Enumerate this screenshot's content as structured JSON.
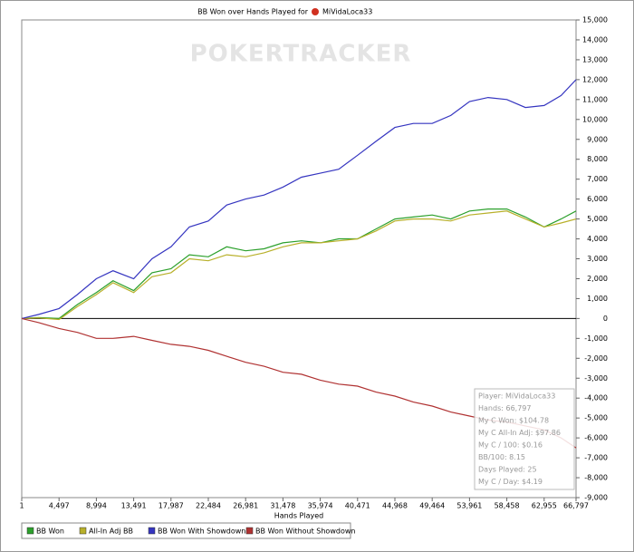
{
  "chart_data": {
    "type": "line",
    "title": "BB Won over Hands Played for",
    "title_player": "MiVidaLoca33",
    "watermark": "POKERTRACKER",
    "x_label": "Hands Played",
    "x": [
      1,
      2000,
      4497,
      6700,
      8994,
      11000,
      13491,
      15700,
      17987,
      20200,
      22484,
      24700,
      26981,
      29200,
      31478,
      33700,
      35974,
      38200,
      40471,
      42700,
      44968,
      47200,
      49464,
      51700,
      53961,
      56200,
      58458,
      60700,
      62955,
      65000,
      66797
    ],
    "series": [
      {
        "name": "BB Won",
        "color": "#2ca02c",
        "values": [
          0,
          50,
          0,
          700,
          1300,
          1900,
          1400,
          2300,
          2500,
          3200,
          3100,
          3600,
          3400,
          3500,
          3800,
          3900,
          3800,
          4000,
          4000,
          4500,
          5000,
          5100,
          5200,
          5000,
          5400,
          5500,
          5500,
          5100,
          4600,
          5000,
          5400
        ]
      },
      {
        "name": "All-In Adj BB",
        "color": "#b8b02a",
        "values": [
          0,
          30,
          -50,
          600,
          1200,
          1800,
          1300,
          2100,
          2300,
          3000,
          2900,
          3200,
          3100,
          3300,
          3600,
          3800,
          3800,
          3900,
          4000,
          4400,
          4900,
          5000,
          5000,
          4900,
          5200,
          5300,
          5400,
          5000,
          4600,
          4800,
          5000
        ]
      },
      {
        "name": "BB Won With Showdown",
        "color": "#3535c0",
        "values": [
          0,
          200,
          500,
          1200,
          2000,
          2400,
          2000,
          3000,
          3600,
          4600,
          4900,
          5700,
          6000,
          6200,
          6600,
          7100,
          7300,
          7500,
          8200,
          8900,
          9600,
          9800,
          9800,
          10200,
          10900,
          11100,
          11000,
          10600,
          10700,
          11200,
          12000
        ]
      },
      {
        "name": "BB Won Without Showdown",
        "color": "#b03232",
        "values": [
          0,
          -200,
          -500,
          -700,
          -1000,
          -1000,
          -900,
          -1100,
          -1300,
          -1400,
          -1600,
          -1900,
          -2200,
          -2400,
          -2700,
          -2800,
          -3100,
          -3300,
          -3400,
          -3700,
          -3900,
          -4200,
          -4400,
          -4700,
          -4900,
          -5100,
          -5200,
          -5400,
          -5600,
          -6000,
          -6500
        ]
      }
    ],
    "xlim": [
      1,
      66797
    ],
    "xticks": [
      1,
      {
        "value": 4497,
        "label": "4,497"
      },
      {
        "value": 8994,
        "label": "8,994"
      },
      {
        "value": 13491,
        "label": "13,491"
      },
      {
        "value": 17987,
        "label": "17,987"
      },
      {
        "value": 22484,
        "label": "22,484"
      },
      {
        "value": 26981,
        "label": "26,981"
      },
      {
        "value": 31478,
        "label": "31,478"
      },
      {
        "value": 35974,
        "label": "35,974"
      },
      {
        "value": 40471,
        "label": "40,471"
      },
      {
        "value": 44968,
        "label": "44,968"
      },
      {
        "value": 49464,
        "label": "49,464"
      },
      {
        "value": 53961,
        "label": "53,961"
      },
      {
        "value": 58458,
        "label": "58,458"
      },
      {
        "value": 62955,
        "label": "62,955"
      },
      {
        "value": 66797,
        "label": "66,797"
      }
    ],
    "ylim": [
      -9000,
      15000
    ],
    "yticks": [
      {
        "value": -9000,
        "label": "-9,000"
      },
      {
        "value": -8000,
        "label": "-8,000"
      },
      {
        "value": -7000,
        "label": "-7,000"
      },
      {
        "value": -6000,
        "label": "-6,000"
      },
      {
        "value": -5000,
        "label": "-5,000"
      },
      {
        "value": -4000,
        "label": "-4,000"
      },
      {
        "value": -3000,
        "label": "-3,000"
      },
      {
        "value": -2000,
        "label": "-2,000"
      },
      {
        "value": -1000,
        "label": "-1,000"
      },
      0,
      {
        "value": 1000,
        "label": "1,000"
      },
      {
        "value": 2000,
        "label": "2,000"
      },
      {
        "value": 3000,
        "label": "3,000"
      },
      {
        "value": 4000,
        "label": "4,000"
      },
      {
        "value": 5000,
        "label": "5,000"
      },
      {
        "value": 6000,
        "label": "6,000"
      },
      {
        "value": 7000,
        "label": "7,000"
      },
      {
        "value": 8000,
        "label": "8,000"
      },
      {
        "value": 9000,
        "label": "9,000"
      },
      {
        "value": 10000,
        "label": "10,000"
      },
      {
        "value": 11000,
        "label": "11,000"
      },
      {
        "value": 12000,
        "label": "12,000"
      },
      {
        "value": 13000,
        "label": "13,000"
      },
      {
        "value": 14000,
        "label": "14,000"
      },
      {
        "value": 15000,
        "label": "15,000"
      }
    ],
    "y_axis_side": "right",
    "grid": false,
    "stats": [
      "Player: MiVidaLoca33",
      "Hands: 66,797",
      "My C Won: $104.78",
      "My C All-In Adj: $97.86",
      "My C / 100: $0.16",
      "BB/100: 8.15",
      "Days Played: 25",
      "My C / Day: $4.19"
    ]
  }
}
